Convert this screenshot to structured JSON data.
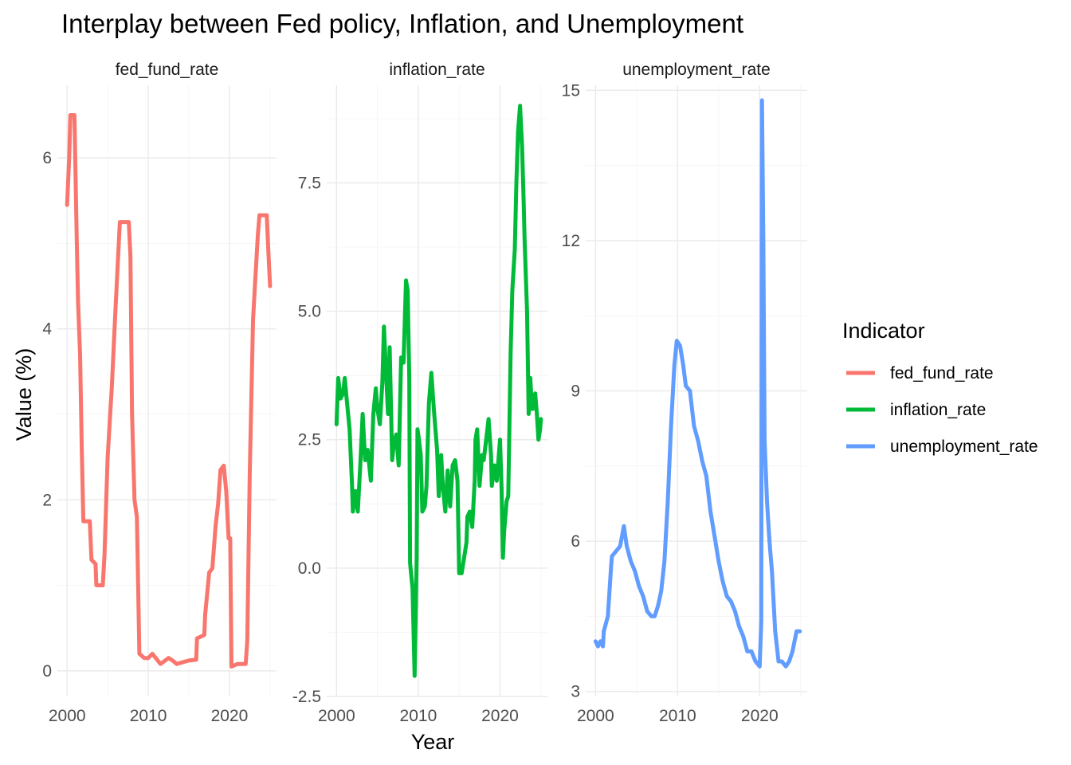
{
  "chart_data": {
    "type": "line",
    "title": "Interplay between Fed policy, Inflation, and Unemployment",
    "xlabel": "Year",
    "ylabel": "Value (%)",
    "legend": {
      "title": "Indicator",
      "position": "right",
      "entries": [
        {
          "name": "fed_fund_rate",
          "color": "#F8766D"
        },
        {
          "name": "inflation_rate",
          "color": "#00BA38"
        },
        {
          "name": "unemployment_rate",
          "color": "#619CFF"
        }
      ]
    },
    "grid": true,
    "panels": [
      {
        "name": "fed_fund_rate",
        "color": "#F8766D",
        "xlim": [
          1998.8,
          2025.8
        ],
        "ylim": [
          -0.3,
          6.85
        ],
        "x_ticks": [
          2000,
          2010,
          2020
        ],
        "y_ticks": [
          0,
          2,
          4,
          6
        ],
        "y_tick_labels": [
          "0",
          "2",
          "4",
          "6"
        ],
        "points": [
          [
            2000.0,
            5.45
          ],
          [
            2000.25,
            6.0
          ],
          [
            2000.4,
            6.5
          ],
          [
            2000.9,
            6.5
          ],
          [
            2001.0,
            6.0
          ],
          [
            2001.2,
            5.0
          ],
          [
            2001.35,
            4.3
          ],
          [
            2001.6,
            3.7
          ],
          [
            2001.8,
            2.6
          ],
          [
            2002.0,
            1.75
          ],
          [
            2002.8,
            1.75
          ],
          [
            2003.0,
            1.3
          ],
          [
            2003.5,
            1.25
          ],
          [
            2003.6,
            1.0
          ],
          [
            2004.4,
            1.0
          ],
          [
            2004.6,
            1.35
          ],
          [
            2005.0,
            2.5
          ],
          [
            2005.5,
            3.3
          ],
          [
            2006.0,
            4.3
          ],
          [
            2006.5,
            5.25
          ],
          [
            2007.6,
            5.25
          ],
          [
            2007.8,
            4.85
          ],
          [
            2008.0,
            3.0
          ],
          [
            2008.3,
            2.0
          ],
          [
            2008.6,
            1.8
          ],
          [
            2008.9,
            0.2
          ],
          [
            2009.5,
            0.15
          ],
          [
            2010.0,
            0.15
          ],
          [
            2010.5,
            0.2
          ],
          [
            2011.5,
            0.08
          ],
          [
            2012.5,
            0.15
          ],
          [
            2013.0,
            0.12
          ],
          [
            2013.5,
            0.08
          ],
          [
            2015.0,
            0.12
          ],
          [
            2015.9,
            0.13
          ],
          [
            2016.0,
            0.38
          ],
          [
            2016.9,
            0.42
          ],
          [
            2017.0,
            0.65
          ],
          [
            2017.5,
            1.15
          ],
          [
            2017.9,
            1.2
          ],
          [
            2018.3,
            1.7
          ],
          [
            2018.6,
            1.95
          ],
          [
            2018.9,
            2.35
          ],
          [
            2019.3,
            2.4
          ],
          [
            2019.6,
            2.1
          ],
          [
            2019.9,
            1.55
          ],
          [
            2020.1,
            1.55
          ],
          [
            2020.25,
            0.05
          ],
          [
            2021.0,
            0.08
          ],
          [
            2022.0,
            0.08
          ],
          [
            2022.2,
            0.35
          ],
          [
            2022.5,
            2.3
          ],
          [
            2022.9,
            4.1
          ],
          [
            2023.2,
            4.6
          ],
          [
            2023.5,
            5.1
          ],
          [
            2023.7,
            5.33
          ],
          [
            2024.6,
            5.33
          ],
          [
            2024.75,
            5.0
          ],
          [
            2025.0,
            4.5
          ]
        ]
      },
      {
        "name": "inflation_rate",
        "color": "#00BA38",
        "xlim": [
          1998.8,
          2025.8
        ],
        "ylim": [
          -2.5,
          9.4
        ],
        "x_ticks": [
          2000,
          2010,
          2020
        ],
        "y_ticks": [
          -2.5,
          0,
          2.5,
          5,
          7.5
        ],
        "y_tick_labels": [
          "-2.5",
          "0.0",
          "2.5",
          "5.0",
          "7.5"
        ],
        "points": [
          [
            2000.0,
            2.8
          ],
          [
            2000.2,
            3.7
          ],
          [
            2000.5,
            3.3
          ],
          [
            2000.8,
            3.4
          ],
          [
            2001.0,
            3.7
          ],
          [
            2001.3,
            3.2
          ],
          [
            2001.6,
            2.7
          ],
          [
            2001.9,
            1.6
          ],
          [
            2002.0,
            1.1
          ],
          [
            2002.3,
            1.5
          ],
          [
            2002.6,
            1.1
          ],
          [
            2002.9,
            2.0
          ],
          [
            2003.2,
            3.0
          ],
          [
            2003.5,
            2.1
          ],
          [
            2003.8,
            2.3
          ],
          [
            2004.2,
            1.7
          ],
          [
            2004.5,
            3.0
          ],
          [
            2004.8,
            3.5
          ],
          [
            2005.0,
            3.1
          ],
          [
            2005.3,
            2.8
          ],
          [
            2005.6,
            3.6
          ],
          [
            2005.8,
            4.7
          ],
          [
            2006.0,
            4.0
          ],
          [
            2006.3,
            3.0
          ],
          [
            2006.5,
            4.3
          ],
          [
            2006.8,
            2.1
          ],
          [
            2007.0,
            2.4
          ],
          [
            2007.3,
            2.6
          ],
          [
            2007.6,
            2.0
          ],
          [
            2007.9,
            4.1
          ],
          [
            2008.2,
            4.0
          ],
          [
            2008.5,
            5.6
          ],
          [
            2008.7,
            5.4
          ],
          [
            2008.9,
            3.7
          ],
          [
            2009.0,
            0.1
          ],
          [
            2009.3,
            -0.4
          ],
          [
            2009.55,
            -2.1
          ],
          [
            2009.8,
            0.2
          ],
          [
            2009.9,
            2.7
          ],
          [
            2010.0,
            2.6
          ],
          [
            2010.3,
            2.2
          ],
          [
            2010.5,
            1.1
          ],
          [
            2010.8,
            1.2
          ],
          [
            2011.0,
            1.6
          ],
          [
            2011.3,
            3.2
          ],
          [
            2011.6,
            3.8
          ],
          [
            2011.9,
            3.1
          ],
          [
            2012.0,
            2.9
          ],
          [
            2012.3,
            2.3
          ],
          [
            2012.5,
            1.4
          ],
          [
            2012.8,
            2.2
          ],
          [
            2013.0,
            1.6
          ],
          [
            2013.3,
            1.1
          ],
          [
            2013.6,
            1.9
          ],
          [
            2013.9,
            1.2
          ],
          [
            2014.2,
            2.0
          ],
          [
            2014.5,
            2.1
          ],
          [
            2014.8,
            1.7
          ],
          [
            2015.0,
            -0.1
          ],
          [
            2015.3,
            -0.1
          ],
          [
            2015.6,
            0.2
          ],
          [
            2015.9,
            0.5
          ],
          [
            2016.0,
            1.0
          ],
          [
            2016.3,
            1.1
          ],
          [
            2016.6,
            0.8
          ],
          [
            2016.9,
            1.7
          ],
          [
            2017.0,
            2.5
          ],
          [
            2017.2,
            2.7
          ],
          [
            2017.5,
            1.6
          ],
          [
            2017.8,
            2.2
          ],
          [
            2018.0,
            2.1
          ],
          [
            2018.3,
            2.5
          ],
          [
            2018.6,
            2.9
          ],
          [
            2018.9,
            2.2
          ],
          [
            2019.0,
            1.6
          ],
          [
            2019.3,
            2.0
          ],
          [
            2019.6,
            1.7
          ],
          [
            2019.9,
            2.3
          ],
          [
            2020.0,
            2.5
          ],
          [
            2020.2,
            1.5
          ],
          [
            2020.35,
            0.2
          ],
          [
            2020.5,
            0.7
          ],
          [
            2020.8,
            1.3
          ],
          [
            2021.0,
            1.4
          ],
          [
            2021.3,
            4.2
          ],
          [
            2021.5,
            5.4
          ],
          [
            2021.8,
            6.2
          ],
          [
            2022.0,
            7.5
          ],
          [
            2022.2,
            8.5
          ],
          [
            2022.45,
            9.0
          ],
          [
            2022.7,
            8.2
          ],
          [
            2022.9,
            7.1
          ],
          [
            2023.0,
            6.4
          ],
          [
            2023.3,
            5.0
          ],
          [
            2023.5,
            3.0
          ],
          [
            2023.7,
            3.7
          ],
          [
            2023.9,
            3.1
          ],
          [
            2024.0,
            3.1
          ],
          [
            2024.3,
            3.4
          ],
          [
            2024.5,
            3.0
          ],
          [
            2024.7,
            2.5
          ],
          [
            2024.9,
            2.7
          ],
          [
            2025.0,
            2.9
          ]
        ]
      },
      {
        "name": "unemployment_rate",
        "color": "#619CFF",
        "xlim": [
          1998.8,
          2025.8
        ],
        "ylim": [
          2.9,
          15.1
        ],
        "x_ticks": [
          2000,
          2010,
          2020
        ],
        "y_ticks": [
          3,
          6,
          9,
          12,
          15
        ],
        "y_tick_labels": [
          "3",
          "6",
          "9",
          "12",
          "15"
        ],
        "points": [
          [
            2000.0,
            4.0
          ],
          [
            2000.3,
            3.9
          ],
          [
            2000.6,
            4.0
          ],
          [
            2000.9,
            3.9
          ],
          [
            2001.0,
            4.2
          ],
          [
            2001.5,
            4.5
          ],
          [
            2001.9,
            5.5
          ],
          [
            2002.0,
            5.7
          ],
          [
            2002.5,
            5.8
          ],
          [
            2003.0,
            5.9
          ],
          [
            2003.45,
            6.3
          ],
          [
            2003.8,
            5.9
          ],
          [
            2004.3,
            5.6
          ],
          [
            2004.8,
            5.4
          ],
          [
            2005.3,
            5.1
          ],
          [
            2005.8,
            4.9
          ],
          [
            2006.3,
            4.6
          ],
          [
            2006.8,
            4.5
          ],
          [
            2007.2,
            4.5
          ],
          [
            2007.6,
            4.7
          ],
          [
            2008.0,
            5.0
          ],
          [
            2008.4,
            5.6
          ],
          [
            2008.8,
            6.8
          ],
          [
            2009.2,
            8.3
          ],
          [
            2009.6,
            9.5
          ],
          [
            2009.9,
            10.0
          ],
          [
            2010.3,
            9.9
          ],
          [
            2010.7,
            9.5
          ],
          [
            2011.0,
            9.1
          ],
          [
            2011.5,
            9.0
          ],
          [
            2012.0,
            8.3
          ],
          [
            2012.5,
            8.0
          ],
          [
            2013.0,
            7.6
          ],
          [
            2013.5,
            7.3
          ],
          [
            2014.0,
            6.6
          ],
          [
            2014.5,
            6.1
          ],
          [
            2015.0,
            5.6
          ],
          [
            2015.5,
            5.2
          ],
          [
            2016.0,
            4.9
          ],
          [
            2016.5,
            4.8
          ],
          [
            2017.0,
            4.6
          ],
          [
            2017.5,
            4.3
          ],
          [
            2018.0,
            4.1
          ],
          [
            2018.5,
            3.8
          ],
          [
            2019.0,
            3.8
          ],
          [
            2019.5,
            3.6
          ],
          [
            2020.0,
            3.5
          ],
          [
            2020.2,
            4.4
          ],
          [
            2020.28,
            14.8
          ],
          [
            2020.45,
            12.0
          ],
          [
            2020.6,
            8.0
          ],
          [
            2020.9,
            6.8
          ],
          [
            2021.2,
            6.0
          ],
          [
            2021.5,
            5.4
          ],
          [
            2021.9,
            4.2
          ],
          [
            2022.3,
            3.6
          ],
          [
            2022.7,
            3.6
          ],
          [
            2023.2,
            3.5
          ],
          [
            2023.6,
            3.6
          ],
          [
            2024.0,
            3.8
          ],
          [
            2024.5,
            4.2
          ],
          [
            2024.9,
            4.2
          ]
        ]
      }
    ]
  }
}
